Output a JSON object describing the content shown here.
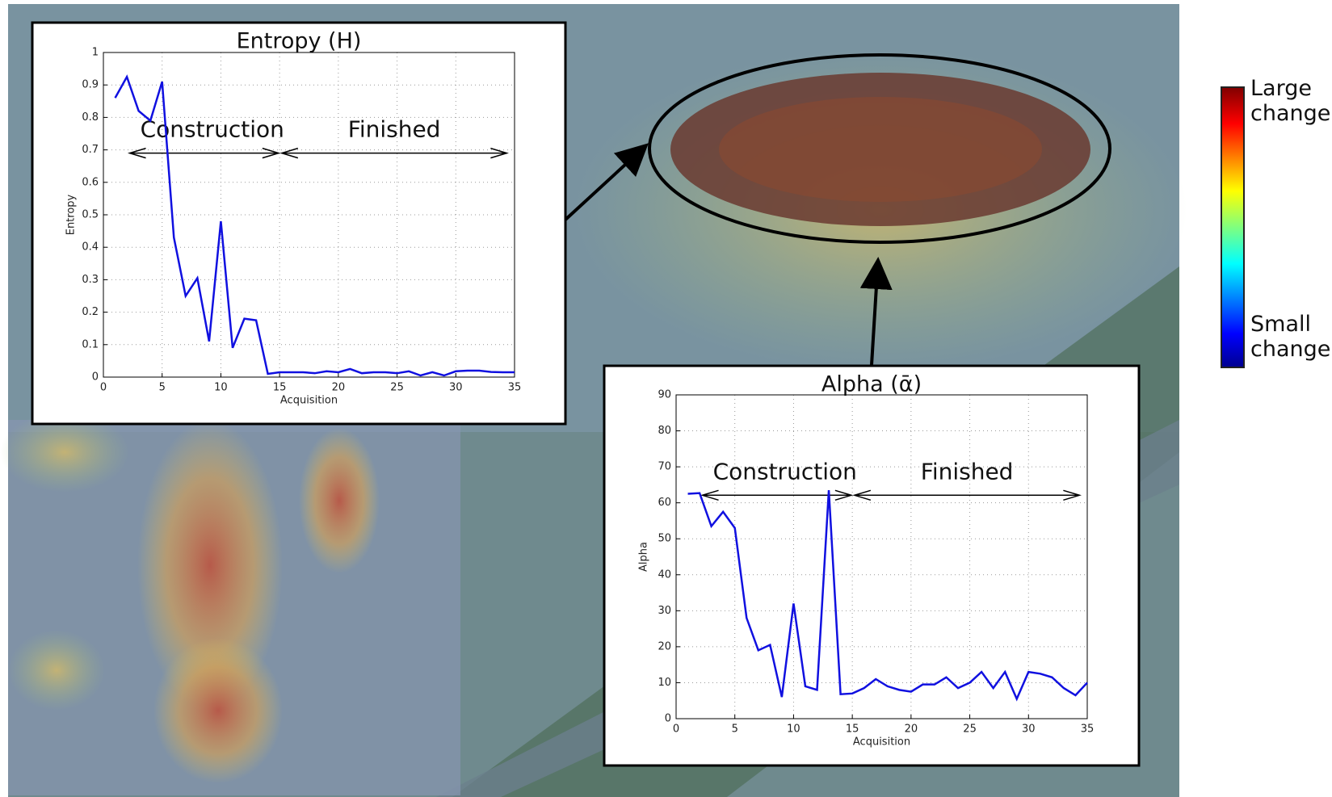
{
  "chart_data": [
    {
      "type": "line",
      "title": "Entropy (H)",
      "x_label": "Acquisition",
      "y_label": "Entropy",
      "annotations": [
        "Construction",
        "Finished"
      ],
      "x": [
        1,
        2,
        3,
        4,
        5,
        6,
        7,
        8,
        9,
        10,
        11,
        12,
        13,
        14,
        15,
        16,
        17,
        18,
        19,
        20,
        21,
        22,
        23,
        24,
        25,
        26,
        27,
        28,
        29,
        30,
        31,
        32,
        33,
        34,
        35
      ],
      "series": [
        {
          "color": "#1010e0",
          "values": [
            0.86,
            0.925,
            0.82,
            0.79,
            0.91,
            0.43,
            0.25,
            0.305,
            0.11,
            0.48,
            0.09,
            0.18,
            0.175,
            0.01,
            0.015,
            0.015,
            0.015,
            0.012,
            0.018,
            0.015,
            0.025,
            0.012,
            0.015,
            0.015,
            0.012,
            0.018,
            0.005,
            0.015,
            0.005,
            0.018,
            0.02,
            0.02,
            0.016,
            0.015,
            0.015
          ]
        }
      ],
      "xlim": [
        0,
        35
      ],
      "xticks": [
        0,
        5,
        10,
        15,
        20,
        25,
        30,
        35
      ],
      "ylim": [
        0,
        1
      ],
      "yticks": [
        0,
        0.1,
        0.2,
        0.3,
        0.4,
        0.5,
        0.6,
        0.7,
        0.8,
        0.9,
        1
      ],
      "grid": true
    },
    {
      "type": "line",
      "title": "Alpha (ᾱ)",
      "x_label": "Acquisition",
      "y_label": "Alpha",
      "annotations": [
        "Construction",
        "Finished"
      ],
      "x": [
        1,
        2,
        3,
        4,
        5,
        6,
        7,
        8,
        9,
        10,
        11,
        12,
        13,
        14,
        15,
        16,
        17,
        18,
        19,
        20,
        21,
        22,
        23,
        24,
        25,
        26,
        27,
        28,
        29,
        30,
        31,
        32,
        33,
        34,
        35
      ],
      "series": [
        {
          "color": "#1010e0",
          "values": [
            62.5,
            62.7,
            53.5,
            57.5,
            53,
            28,
            19,
            20.5,
            6,
            32,
            9,
            8,
            63.5,
            6.8,
            7,
            8.5,
            11,
            9,
            8,
            7.5,
            9.5,
            9.5,
            11.5,
            8.5,
            10,
            13,
            8.5,
            13,
            5.5,
            13,
            12.5,
            11.5,
            8.5,
            6.5,
            10
          ]
        }
      ],
      "xlim": [
        0,
        35
      ],
      "xticks": [
        0,
        5,
        10,
        15,
        20,
        25,
        30,
        35
      ],
      "ylim": [
        0,
        90
      ],
      "yticks": [
        0,
        10,
        20,
        30,
        40,
        50,
        60,
        70,
        80,
        90
      ],
      "grid": true
    }
  ],
  "colorbar": {
    "high_label": "Large change",
    "low_label": "Small change"
  }
}
